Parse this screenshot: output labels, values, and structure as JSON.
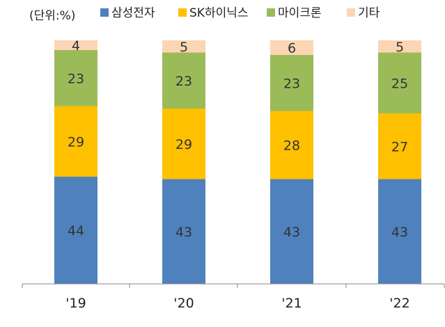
{
  "chart_data": {
    "type": "bar",
    "stacked": true,
    "unit_label": "(단위:%)",
    "categories": [
      "'19",
      "'20",
      "'21",
      "'22"
    ],
    "series": [
      {
        "name": "삼성전자",
        "color": "#4f81bd",
        "values": [
          44,
          43,
          43,
          43
        ]
      },
      {
        "name": "SK하이닉스",
        "color": "#ffc000",
        "values": [
          29,
          29,
          28,
          27
        ]
      },
      {
        "name": "마이크론",
        "color": "#9bbb59",
        "values": [
          23,
          23,
          23,
          25
        ]
      },
      {
        "name": "기타",
        "color": "#fcd5b4",
        "values": [
          4,
          5,
          6,
          5
        ]
      }
    ],
    "ylim": [
      0,
      100
    ],
    "legend_position": "top",
    "grid": false
  }
}
